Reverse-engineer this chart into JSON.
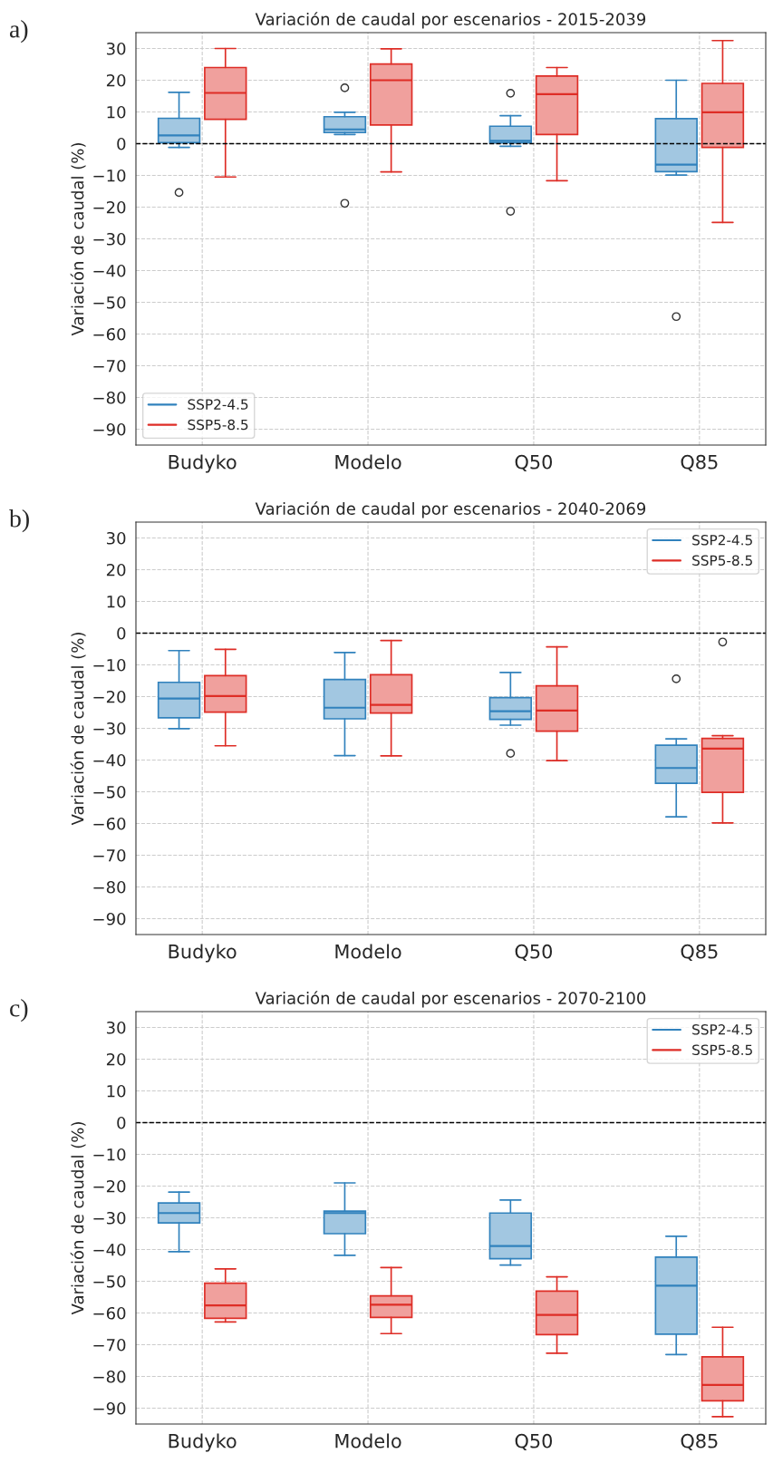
{
  "chart_data": [
    {
      "type": "box",
      "title": "Variación de caudal por escenarios - 2015-2039",
      "ylabel": "Variación de caudal (%)",
      "annotations": [
        "a)"
      ],
      "categories": [
        "Budyko",
        "Modelo",
        "Q50",
        "Q85"
      ],
      "ylim": [
        -95,
        35
      ],
      "yticks": [
        30,
        20,
        10,
        0,
        -10,
        -20,
        -30,
        -40,
        -50,
        -60,
        -70,
        -80,
        -90
      ],
      "grid": true,
      "legend": "bottom left",
      "ref_lines": [
        {
          "axis": "y",
          "value": 0,
          "color": "#000000",
          "line_style": "dashed"
        }
      ],
      "series": [
        {
          "name": "SSP2-4.5",
          "color": "#3182bd",
          "boxes": [
            {
              "low": -1.2,
              "q1": 0.3,
              "median": 2.6,
              "q3": 8,
              "high": 16.2,
              "outliers": [
                -15.4
              ]
            },
            {
              "low": 2.9,
              "q1": 3.5,
              "median": 4.5,
              "q3": 8.5,
              "high": 9.9,
              "outliers": [
                17.6,
                -18.8
              ]
            },
            {
              "low": -0.8,
              "q1": 0.3,
              "median": 0.9,
              "q3": 5.5,
              "high": 8.8,
              "outliers": [
                15.9,
                -21.3
              ]
            },
            {
              "low": -9.9,
              "q1": -8.8,
              "median": -6.6,
              "q3": 7.9,
              "high": 20,
              "outliers": [
                -54.5
              ]
            }
          ]
        },
        {
          "name": "SSP5-8.5",
          "color": "#de2d26",
          "boxes": [
            {
              "low": -10.5,
              "q1": 7.7,
              "median": 16,
              "q3": 24,
              "high": 30
            },
            {
              "low": -8.9,
              "q1": 5.9,
              "median": 20,
              "q3": 25.1,
              "high": 29.9
            },
            {
              "low": -11.7,
              "q1": 2.9,
              "median": 15.6,
              "q3": 21.3,
              "high": 24
            },
            {
              "low": -24.8,
              "q1": -1.2,
              "median": 9.9,
              "q3": 19,
              "high": 32.5
            }
          ]
        }
      ]
    },
    {
      "type": "box",
      "title": "Variación de caudal por escenarios - 2040-2069",
      "ylabel": "Variación de caudal (%)",
      "annotations": [
        "b)"
      ],
      "categories": [
        "Budyko",
        "Modelo",
        "Q50",
        "Q85"
      ],
      "ylim": [
        -95,
        35
      ],
      "yticks": [
        30,
        20,
        10,
        0,
        -10,
        -20,
        -30,
        -40,
        -50,
        -60,
        -70,
        -80,
        -90
      ],
      "grid": true,
      "legend": "top right",
      "ref_lines": [
        {
          "axis": "y",
          "value": 0,
          "color": "#000000",
          "line_style": "dashed"
        }
      ],
      "series": [
        {
          "name": "SSP2-4.5",
          "color": "#3182bd",
          "boxes": [
            {
              "low": -30.1,
              "q1": -26.7,
              "median": -20.6,
              "q3": -15.5,
              "high": -5.5
            },
            {
              "low": -38.6,
              "q1": -27,
              "median": -23.5,
              "q3": -14.6,
              "high": -6.1
            },
            {
              "low": -29,
              "q1": -27.2,
              "median": -24.6,
              "q3": -20.3,
              "high": -12.4,
              "outliers": [
                -37.9
              ]
            },
            {
              "low": -57.9,
              "q1": -47.3,
              "median": -42.5,
              "q3": -35.3,
              "high": -33.3,
              "outliers": [
                -14.4
              ]
            }
          ]
        },
        {
          "name": "SSP5-8.5",
          "color": "#de2d26",
          "boxes": [
            {
              "low": -35.5,
              "q1": -24.9,
              "median": -19.8,
              "q3": -13.4,
              "high": -5.1
            },
            {
              "low": -38.7,
              "q1": -25.2,
              "median": -22.6,
              "q3": -13.1,
              "high": -2.3
            },
            {
              "low": -40.2,
              "q1": -30.9,
              "median": -24.4,
              "q3": -16.6,
              "high": -4.3
            },
            {
              "low": -59.8,
              "q1": -50.2,
              "median": -36.4,
              "q3": -33.2,
              "high": -32.3,
              "outliers": [
                -2.8
              ]
            }
          ]
        }
      ]
    },
    {
      "type": "box",
      "title": "Variación de caudal por escenarios - 2070-2100",
      "ylabel": "Variación de caudal (%)",
      "annotations": [
        "c)"
      ],
      "categories": [
        "Budyko",
        "Modelo",
        "Q50",
        "Q85"
      ],
      "ylim": [
        -95,
        35
      ],
      "yticks": [
        30,
        20,
        10,
        0,
        -10,
        -20,
        -30,
        -40,
        -50,
        -60,
        -70,
        -80,
        -90
      ],
      "grid": true,
      "legend": "top right",
      "ref_lines": [
        {
          "axis": "y",
          "value": 0,
          "color": "#000000",
          "line_style": "dashed"
        }
      ],
      "series": [
        {
          "name": "SSP2-4.5",
          "color": "#3182bd",
          "boxes": [
            {
              "low": -40.7,
              "q1": -31.6,
              "median": -28.5,
              "q3": -25.3,
              "high": -21.9
            },
            {
              "low": -41.8,
              "q1": -35,
              "median": -28.5,
              "q3": -27.9,
              "high": -19
            },
            {
              "low": -44.9,
              "q1": -42.9,
              "median": -38.9,
              "q3": -28.5,
              "high": -24.4
            },
            {
              "low": -73.1,
              "q1": -66.7,
              "median": -51.4,
              "q3": -42.4,
              "high": -35.8
            }
          ]
        },
        {
          "name": "SSP5-8.5",
          "color": "#de2d26",
          "boxes": [
            {
              "low": -62.8,
              "q1": -61.7,
              "median": -57.6,
              "q3": -50.6,
              "high": -46.1
            },
            {
              "low": -66.5,
              "q1": -61.4,
              "median": -57.4,
              "q3": -54.6,
              "high": -45.7
            },
            {
              "low": -72.7,
              "q1": -66.8,
              "median": -60.6,
              "q3": -53.1,
              "high": -48.6
            },
            {
              "low": -92.7,
              "q1": -87.7,
              "median": -82.7,
              "q3": -73.8,
              "high": -64.5
            }
          ]
        }
      ]
    }
  ]
}
